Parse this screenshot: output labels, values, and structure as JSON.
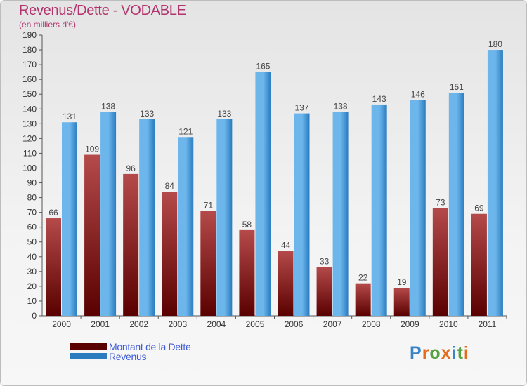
{
  "title": "Revenus/Dette - VODABLE",
  "subtitle": "(en milliers d'€)",
  "logo": {
    "text": "Proxiti",
    "colors": [
      "#3a83c5",
      "#e36c1d",
      "#56a23f",
      "#e36c1d",
      "#3a83c5",
      "#56a23f",
      "#e36c1d"
    ]
  },
  "colors": {
    "dette_dark": "#5a0000",
    "dette_light": "#b54a4a",
    "revenus_dark": "#2a7cbf",
    "revenus_light": "#6db6ec",
    "title": "#b3346d",
    "legend_text": "#3d5ad8"
  },
  "chart_data": {
    "type": "bar",
    "title": "Revenus/Dette - VODABLE",
    "subtitle": "(en milliers d'€)",
    "categories": [
      "2000",
      "2001",
      "2002",
      "2003",
      "2004",
      "2005",
      "2006",
      "2007",
      "2008",
      "2009",
      "2010",
      "2011"
    ],
    "series": [
      {
        "name": "Montant de la Dette",
        "values": [
          66,
          109,
          96,
          84,
          71,
          58,
          44,
          33,
          22,
          19,
          73,
          69
        ]
      },
      {
        "name": "Revenus",
        "values": [
          131,
          138,
          133,
          121,
          133,
          165,
          137,
          138,
          143,
          146,
          151,
          180
        ]
      }
    ],
    "ylim": [
      0,
      190
    ],
    "ytick_step": 10,
    "grid": false,
    "legend_position": "bottom-left"
  }
}
